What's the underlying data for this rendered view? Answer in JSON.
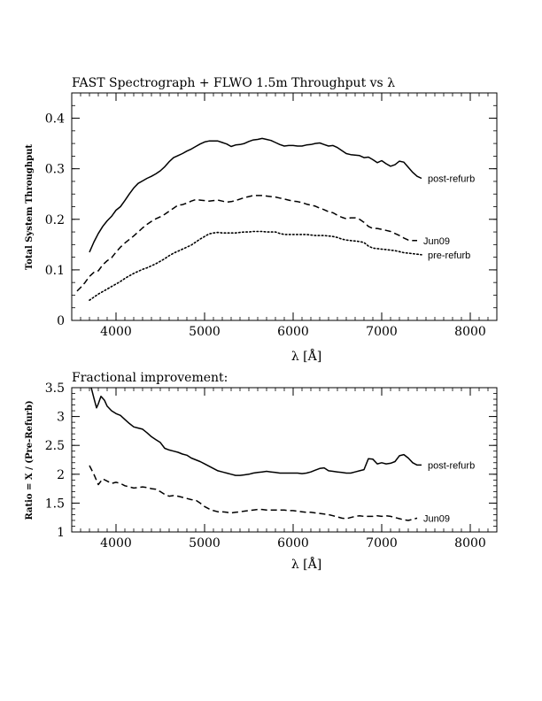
{
  "chart_data": [
    {
      "type": "line",
      "title": "FAST Spectrograph + FLWO 1.5m Throughput vs λ",
      "xlabel": "λ [Å]",
      "ylabel": "Total System Throughput",
      "xlim": [
        3500,
        8300
      ],
      "ylim": [
        0,
        0.45
      ],
      "xticks": [
        4000,
        5000,
        6000,
        7000,
        8000
      ],
      "yticks": [
        0,
        0.1,
        0.2,
        0.3,
        0.4
      ],
      "xtick_labels": [
        "4000",
        "5000",
        "6000",
        "7000",
        "8000"
      ],
      "ytick_labels": [
        "0",
        "0.1",
        "0.2",
        "0.3",
        "0.4"
      ],
      "legend": "inline labels at right end of each curve",
      "series": [
        {
          "name": "post-refurb",
          "style": "solid",
          "x": [
            3700,
            3750,
            3800,
            3850,
            3900,
            3950,
            4000,
            4050,
            4100,
            4150,
            4200,
            4250,
            4300,
            4350,
            4400,
            4450,
            4500,
            4550,
            4600,
            4650,
            4700,
            4750,
            4800,
            4850,
            4900,
            4950,
            5000,
            5050,
            5100,
            5150,
            5200,
            5250,
            5300,
            5350,
            5400,
            5450,
            5500,
            5550,
            5600,
            5650,
            5700,
            5750,
            5800,
            5850,
            5900,
            5950,
            6000,
            6050,
            6100,
            6150,
            6200,
            6250,
            6300,
            6350,
            6400,
            6450,
            6500,
            6550,
            6600,
            6650,
            6700,
            6750,
            6800,
            6850,
            6900,
            6950,
            7000,
            7050,
            7100,
            7150,
            7200,
            7250,
            7300,
            7350,
            7400,
            7450
          ],
          "values": [
            0.135,
            0.155,
            0.172,
            0.186,
            0.197,
            0.206,
            0.218,
            0.225,
            0.237,
            0.25,
            0.262,
            0.271,
            0.276,
            0.281,
            0.285,
            0.29,
            0.296,
            0.304,
            0.314,
            0.322,
            0.326,
            0.33,
            0.335,
            0.339,
            0.344,
            0.349,
            0.353,
            0.355,
            0.355,
            0.355,
            0.352,
            0.349,
            0.344,
            0.347,
            0.348,
            0.35,
            0.354,
            0.357,
            0.358,
            0.36,
            0.358,
            0.356,
            0.352,
            0.348,
            0.345,
            0.346,
            0.346,
            0.345,
            0.345,
            0.347,
            0.348,
            0.35,
            0.351,
            0.348,
            0.345,
            0.346,
            0.342,
            0.336,
            0.33,
            0.328,
            0.327,
            0.326,
            0.322,
            0.323,
            0.318,
            0.312,
            0.316,
            0.31,
            0.305,
            0.308,
            0.315,
            0.313,
            0.303,
            0.293,
            0.285,
            0.281
          ]
        },
        {
          "name": "Jun09",
          "style": "dashed",
          "x": [
            3560,
            3600,
            3650,
            3700,
            3750,
            3800,
            3850,
            3900,
            3950,
            4000,
            4050,
            4100,
            4150,
            4200,
            4250,
            4300,
            4350,
            4400,
            4450,
            4500,
            4550,
            4600,
            4650,
            4700,
            4750,
            4800,
            4850,
            4900,
            4950,
            5000,
            5050,
            5100,
            5150,
            5200,
            5250,
            5300,
            5350,
            5400,
            5450,
            5500,
            5550,
            5600,
            5650,
            5700,
            5750,
            5800,
            5850,
            5900,
            5950,
            6000,
            6050,
            6100,
            6150,
            6200,
            6250,
            6300,
            6350,
            6400,
            6450,
            6500,
            6550,
            6600,
            6650,
            6700,
            6750,
            6800,
            6850,
            6900,
            6950,
            7000,
            7050,
            7100,
            7150,
            7200,
            7250,
            7300,
            7350,
            7400
          ],
          "values": [
            0.058,
            0.065,
            0.075,
            0.087,
            0.095,
            0.098,
            0.11,
            0.118,
            0.124,
            0.135,
            0.145,
            0.153,
            0.16,
            0.167,
            0.175,
            0.183,
            0.19,
            0.196,
            0.201,
            0.205,
            0.21,
            0.216,
            0.222,
            0.228,
            0.229,
            0.232,
            0.236,
            0.239,
            0.238,
            0.237,
            0.236,
            0.237,
            0.238,
            0.236,
            0.234,
            0.235,
            0.237,
            0.24,
            0.243,
            0.245,
            0.247,
            0.247,
            0.247,
            0.246,
            0.245,
            0.244,
            0.242,
            0.24,
            0.238,
            0.236,
            0.235,
            0.233,
            0.23,
            0.228,
            0.226,
            0.222,
            0.219,
            0.215,
            0.213,
            0.208,
            0.204,
            0.201,
            0.203,
            0.203,
            0.2,
            0.194,
            0.186,
            0.182,
            0.182,
            0.18,
            0.178,
            0.176,
            0.172,
            0.168,
            0.163,
            0.159,
            0.158,
            0.158
          ]
        },
        {
          "name": "pre-refurb",
          "style": "dotted",
          "x": [
            3700,
            3750,
            3800,
            3850,
            3900,
            3950,
            4000,
            4050,
            4100,
            4150,
            4200,
            4250,
            4300,
            4350,
            4400,
            4450,
            4500,
            4550,
            4600,
            4650,
            4700,
            4750,
            4800,
            4850,
            4900,
            4950,
            5000,
            5050,
            5100,
            5150,
            5200,
            5250,
            5300,
            5350,
            5400,
            5450,
            5500,
            5550,
            5600,
            5650,
            5700,
            5750,
            5800,
            5850,
            5900,
            5950,
            6000,
            6050,
            6100,
            6150,
            6200,
            6250,
            6300,
            6350,
            6400,
            6450,
            6500,
            6550,
            6600,
            6650,
            6700,
            6750,
            6800,
            6850,
            6900,
            6950,
            7000,
            7050,
            7100,
            7150,
            7200,
            7250,
            7300,
            7350,
            7400,
            7450
          ],
          "values": [
            0.04,
            0.046,
            0.052,
            0.057,
            0.062,
            0.067,
            0.072,
            0.077,
            0.083,
            0.088,
            0.093,
            0.097,
            0.101,
            0.104,
            0.108,
            0.112,
            0.117,
            0.122,
            0.128,
            0.133,
            0.137,
            0.141,
            0.145,
            0.149,
            0.155,
            0.161,
            0.166,
            0.171,
            0.173,
            0.174,
            0.173,
            0.173,
            0.173,
            0.173,
            0.174,
            0.175,
            0.175,
            0.176,
            0.176,
            0.176,
            0.175,
            0.175,
            0.175,
            0.172,
            0.17,
            0.17,
            0.17,
            0.17,
            0.17,
            0.17,
            0.169,
            0.168,
            0.168,
            0.168,
            0.167,
            0.166,
            0.164,
            0.161,
            0.159,
            0.158,
            0.157,
            0.156,
            0.154,
            0.147,
            0.143,
            0.142,
            0.141,
            0.14,
            0.139,
            0.138,
            0.136,
            0.134,
            0.133,
            0.132,
            0.131,
            0.13
          ]
        }
      ]
    },
    {
      "type": "line",
      "title": "Fractional improvement:",
      "xlabel": "λ [Å]",
      "ylabel": "Ratio = X / (Pre-Refurb)",
      "xlim": [
        3500,
        8300
      ],
      "ylim": [
        1,
        3.5
      ],
      "xticks": [
        4000,
        5000,
        6000,
        7000,
        8000
      ],
      "yticks": [
        1,
        1.5,
        2,
        2.5,
        3,
        3.5
      ],
      "xtick_labels": [
        "4000",
        "5000",
        "6000",
        "7000",
        "8000"
      ],
      "ytick_labels": [
        "1",
        "1.5",
        "2",
        "2.5",
        "3",
        "3.5"
      ],
      "legend": "inline labels at right end of each curve",
      "series": [
        {
          "name": "post-refurb",
          "style": "solid",
          "x": [
            3720,
            3750,
            3780,
            3800,
            3830,
            3870,
            3900,
            3950,
            4000,
            4050,
            4100,
            4150,
            4200,
            4250,
            4300,
            4350,
            4400,
            4450,
            4500,
            4550,
            4600,
            4650,
            4700,
            4750,
            4800,
            4850,
            4900,
            4950,
            5000,
            5050,
            5100,
            5150,
            5200,
            5250,
            5300,
            5350,
            5400,
            5450,
            5500,
            5550,
            5600,
            5650,
            5700,
            5750,
            5800,
            5850,
            5900,
            5950,
            6000,
            6050,
            6100,
            6150,
            6200,
            6250,
            6300,
            6350,
            6400,
            6450,
            6500,
            6550,
            6600,
            6650,
            6700,
            6750,
            6800,
            6850,
            6900,
            6950,
            7000,
            7050,
            7100,
            7150,
            7200,
            7250,
            7300,
            7350,
            7400,
            7450
          ],
          "values": [
            3.5,
            3.32,
            3.15,
            3.22,
            3.35,
            3.28,
            3.18,
            3.1,
            3.05,
            3.02,
            2.95,
            2.88,
            2.82,
            2.8,
            2.78,
            2.72,
            2.65,
            2.6,
            2.55,
            2.45,
            2.42,
            2.4,
            2.38,
            2.35,
            2.33,
            2.28,
            2.25,
            2.22,
            2.18,
            2.14,
            2.1,
            2.06,
            2.04,
            2.02,
            2.0,
            1.98,
            1.98,
            1.99,
            2.0,
            2.02,
            2.03,
            2.04,
            2.05,
            2.04,
            2.03,
            2.02,
            2.02,
            2.02,
            2.02,
            2.02,
            2.01,
            2.02,
            2.04,
            2.07,
            2.1,
            2.11,
            2.06,
            2.05,
            2.04,
            2.03,
            2.02,
            2.02,
            2.04,
            2.06,
            2.08,
            2.27,
            2.26,
            2.18,
            2.2,
            2.18,
            2.19,
            2.22,
            2.32,
            2.34,
            2.28,
            2.2,
            2.16,
            2.16
          ]
        },
        {
          "name": "Jun09",
          "style": "dashed",
          "x": [
            3700,
            3750,
            3800,
            3850,
            3900,
            3950,
            4000,
            4050,
            4100,
            4150,
            4200,
            4250,
            4300,
            4350,
            4400,
            4450,
            4500,
            4550,
            4600,
            4650,
            4700,
            4750,
            4800,
            4850,
            4900,
            4950,
            5000,
            5050,
            5100,
            5150,
            5200,
            5250,
            5300,
            5350,
            5400,
            5450,
            5500,
            5550,
            5600,
            5650,
            5700,
            5750,
            5800,
            5850,
            5900,
            5950,
            6000,
            6050,
            6100,
            6150,
            6200,
            6250,
            6300,
            6350,
            6400,
            6450,
            6500,
            6550,
            6600,
            6650,
            6700,
            6750,
            6800,
            6850,
            6900,
            6950,
            7000,
            7050,
            7100,
            7150,
            7200,
            7250,
            7300,
            7350,
            7400
          ],
          "values": [
            2.15,
            2.0,
            1.82,
            1.92,
            1.88,
            1.84,
            1.86,
            1.84,
            1.8,
            1.78,
            1.76,
            1.77,
            1.78,
            1.77,
            1.75,
            1.74,
            1.7,
            1.65,
            1.62,
            1.63,
            1.62,
            1.6,
            1.58,
            1.56,
            1.55,
            1.5,
            1.44,
            1.4,
            1.37,
            1.35,
            1.35,
            1.34,
            1.33,
            1.34,
            1.35,
            1.36,
            1.37,
            1.38,
            1.39,
            1.39,
            1.38,
            1.38,
            1.38,
            1.38,
            1.38,
            1.37,
            1.37,
            1.36,
            1.35,
            1.34,
            1.34,
            1.33,
            1.32,
            1.31,
            1.3,
            1.28,
            1.26,
            1.24,
            1.23,
            1.25,
            1.27,
            1.28,
            1.27,
            1.27,
            1.27,
            1.28,
            1.27,
            1.28,
            1.27,
            1.25,
            1.23,
            1.21,
            1.2,
            1.22,
            1.24
          ]
        }
      ]
    }
  ]
}
